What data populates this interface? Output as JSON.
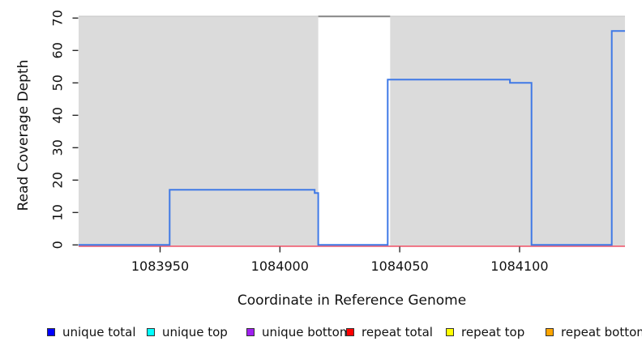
{
  "chart_data": {
    "type": "line",
    "title": "",
    "xlabel": "Coordinate in Reference Genome",
    "ylabel": "Read Coverage Depth",
    "xlim": [
      1083916,
      1084144
    ],
    "ylim": [
      0,
      70.7
    ],
    "xticks": [
      1083950,
      1084000,
      1084050,
      1084100
    ],
    "yticks": [
      0,
      10,
      20,
      30,
      40,
      50,
      60,
      70
    ],
    "grid": false,
    "legend_position": "bottom",
    "background_regions": [
      {
        "name": "repeat-background-left",
        "x1": 1083916,
        "x2": 1084016,
        "color": "#dbdbdb",
        "edge": "#c6c6c6"
      },
      {
        "name": "repeat-background-right",
        "x1": 1084046,
        "x2": 1084144,
        "color": "#dbdbdb",
        "edge": "#c6c6c6"
      }
    ],
    "clipped_segment": {
      "x1": 1084016,
      "x2": 1084046,
      "color": "#858585"
    },
    "series": [
      {
        "name": "repeat total",
        "color": "#ee5a6e",
        "width": 1.6,
        "points": [
          [
            1083916,
            0
          ],
          [
            1084144,
            0
          ]
        ]
      },
      {
        "name": "unique total",
        "color": "#3f79e6",
        "width": 2,
        "points": [
          [
            1083916,
            0
          ],
          [
            1083954,
            0
          ],
          [
            1083954,
            17
          ],
          [
            1084014.5,
            17
          ],
          [
            1084014.5,
            16
          ],
          [
            1084016,
            16
          ],
          [
            1084016,
            0
          ],
          [
            1084045,
            0
          ],
          [
            1084045,
            51
          ],
          [
            1084096,
            51
          ],
          [
            1084096,
            50
          ],
          [
            1084105,
            50
          ],
          [
            1084105,
            0
          ],
          [
            1084138.5,
            0
          ],
          [
            1084138.5,
            66
          ],
          [
            1084144,
            66
          ]
        ]
      }
    ],
    "legend": [
      {
        "label": "unique total",
        "fill": "#0000ff"
      },
      {
        "label": "unique top",
        "fill": "#00ffff"
      },
      {
        "label": "unique bottom",
        "fill": "#a020f0"
      },
      {
        "label": "repeat total",
        "fill": "#ff0000"
      },
      {
        "label": "repeat top",
        "fill": "#ffff00"
      },
      {
        "label": "repeat bottom",
        "fill": "#ffa500"
      }
    ]
  }
}
